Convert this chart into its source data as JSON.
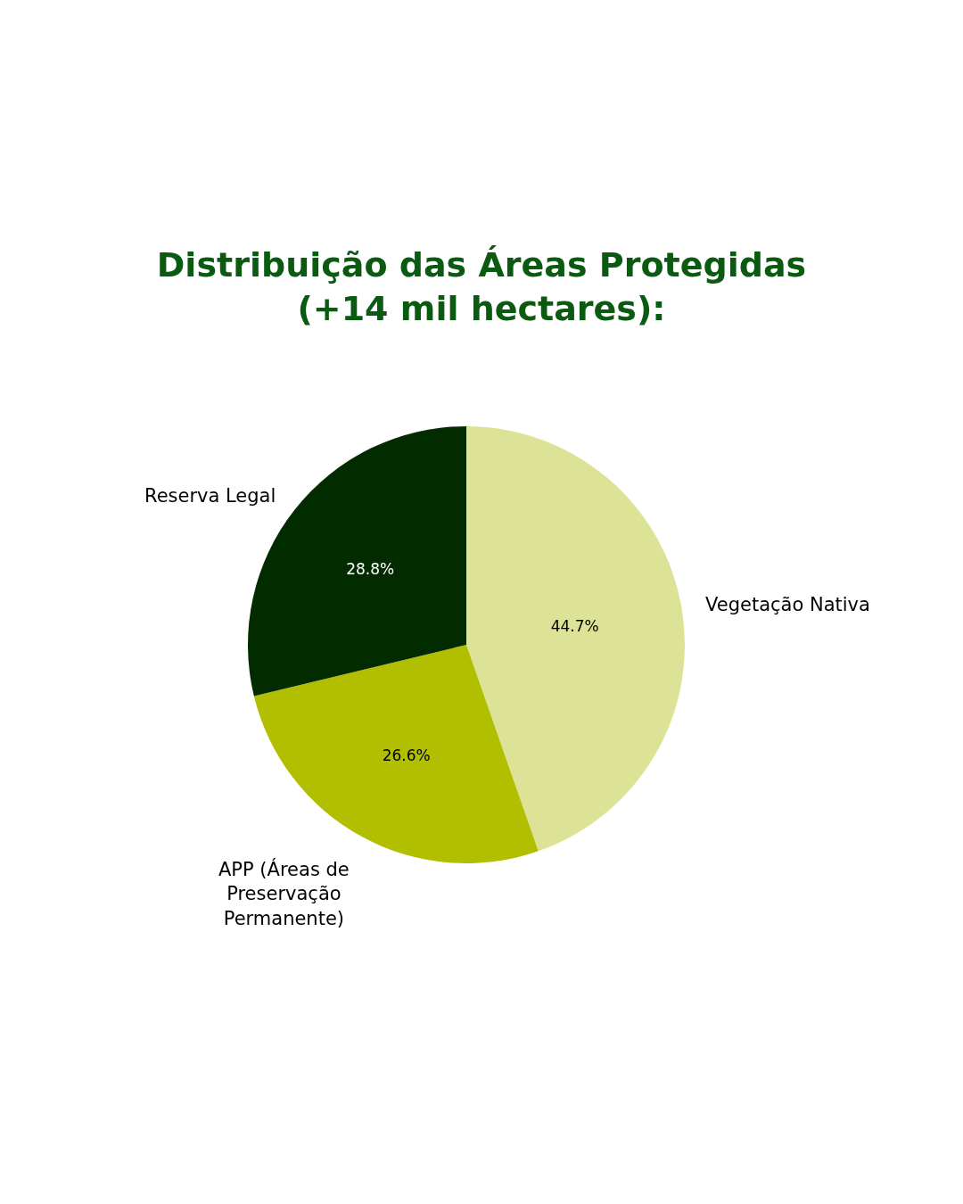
{
  "chart_data": {
    "type": "pie",
    "title": "Distribuição das Áreas Protegidas\n(+14 mil hectares):",
    "categories": [
      "Vegetação Nativa",
      "APP (Áreas de Preservação Permanente)",
      "Reserva Legal"
    ],
    "values": [
      44.7,
      26.6,
      28.8
    ],
    "value_labels": [
      "44.7%",
      "26.6%",
      "28.8%"
    ],
    "colors": [
      "#dde396",
      "#b2be00",
      "#032b00"
    ]
  }
}
